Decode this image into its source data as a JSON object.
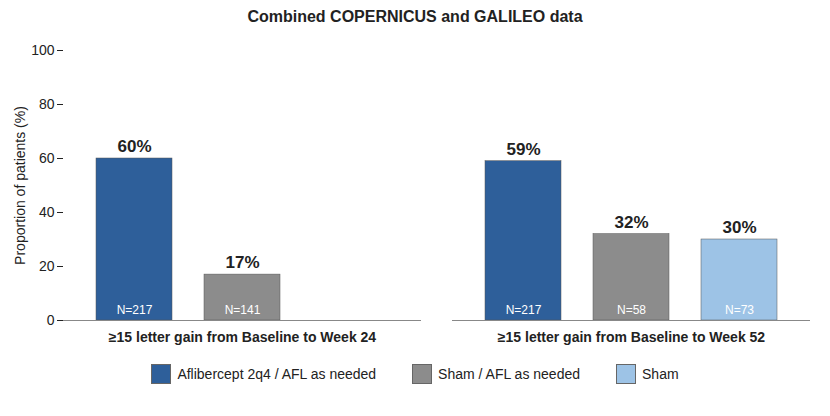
{
  "chart_data": {
    "type": "bar",
    "title": "Combined COPERNICUS and GALILEO data",
    "y_label": "Proportion of patients (%)",
    "categories": [
      "≥15 letter gain from Baseline to Week 24",
      "≥15 letter gain from Baseline to Week 52"
    ],
    "series": [
      {
        "name": "Aflibercept 2q4 / AFL as needed",
        "color": "#2e5f9a",
        "values": [
          60,
          59
        ],
        "value_labels": [
          "60%",
          "59%"
        ],
        "n_labels": [
          "N=217",
          "N=217"
        ]
      },
      {
        "name": "Sham / AFL as needed",
        "color": "#8c8c8c",
        "values": [
          17,
          32
        ],
        "value_labels": [
          "17%",
          "32%"
        ],
        "n_labels": [
          "N=141",
          "N=58"
        ]
      },
      {
        "name": "Sham",
        "color": "#9dc3e6",
        "values": [
          null,
          30
        ],
        "value_labels": [
          null,
          "30%"
        ],
        "n_labels": [
          null,
          "N=73"
        ]
      }
    ],
    "ylim": [
      0,
      100
    ],
    "yticks": [
      0,
      20,
      40,
      60,
      80,
      100
    ],
    "grid": false,
    "legend": "bottom",
    "data_labels": true
  }
}
